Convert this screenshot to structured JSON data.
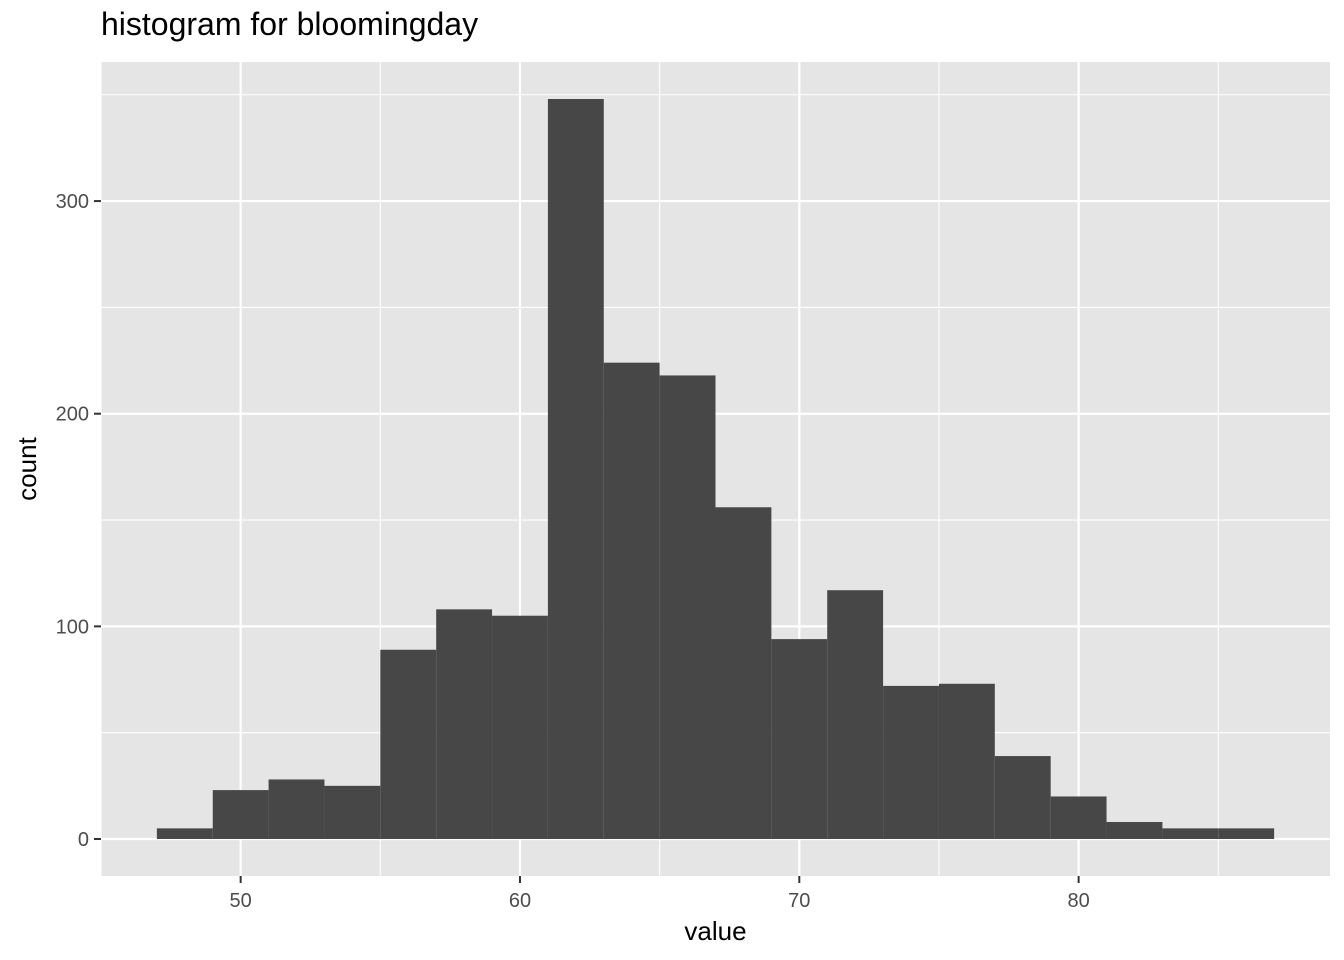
{
  "chart_data": {
    "type": "bar",
    "title": "histogram for bloomingday",
    "xlabel": "value",
    "ylabel": "count",
    "bin_width": 2,
    "bins": [
      {
        "x0": 47,
        "x1": 49,
        "count": 5
      },
      {
        "x0": 49,
        "x1": 51,
        "count": 23
      },
      {
        "x0": 51,
        "x1": 53,
        "count": 28
      },
      {
        "x0": 53,
        "x1": 55,
        "count": 25
      },
      {
        "x0": 55,
        "x1": 57,
        "count": 89
      },
      {
        "x0": 57,
        "x1": 59,
        "count": 108
      },
      {
        "x0": 59,
        "x1": 61,
        "count": 105
      },
      {
        "x0": 61,
        "x1": 63,
        "count": 348
      },
      {
        "x0": 63,
        "x1": 65,
        "count": 224
      },
      {
        "x0": 65,
        "x1": 67,
        "count": 218
      },
      {
        "x0": 67,
        "x1": 69,
        "count": 156
      },
      {
        "x0": 69,
        "x1": 71,
        "count": 94
      },
      {
        "x0": 71,
        "x1": 73,
        "count": 117
      },
      {
        "x0": 73,
        "x1": 75,
        "count": 72
      },
      {
        "x0": 75,
        "x1": 77,
        "count": 73
      },
      {
        "x0": 77,
        "x1": 79,
        "count": 39
      },
      {
        "x0": 79,
        "x1": 81,
        "count": 20
      },
      {
        "x0": 81,
        "x1": 83,
        "count": 8
      },
      {
        "x0": 83,
        "x1": 85,
        "count": 5
      },
      {
        "x0": 85,
        "x1": 87,
        "count": 5
      }
    ],
    "xlim": [
      45,
      89
    ],
    "ylim": [
      -17.4,
      365.4
    ],
    "x_ticks": [
      50,
      60,
      70,
      80
    ],
    "x_tick_labels": [
      "50",
      "60",
      "70",
      "80"
    ],
    "y_ticks": [
      0,
      100,
      200,
      300
    ],
    "y_tick_labels": [
      "0",
      "100",
      "200",
      "300"
    ],
    "grid": true,
    "legend": "none",
    "colors": {
      "panel_background": "#e5e5e5",
      "grid": "#ffffff",
      "bar_fill": "#474747",
      "tick_text": "#4d4d4d",
      "tick_mark": "#333333"
    }
  }
}
